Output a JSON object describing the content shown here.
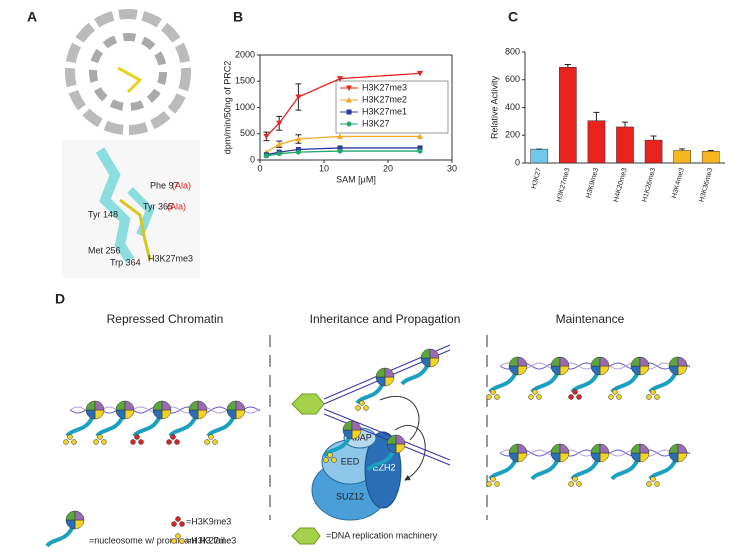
{
  "panel_labels": [
    "A",
    "B",
    "C",
    "D"
  ],
  "structure_labels": [
    "Phe 97",
    "(Ala)",
    "Tyr 365",
    "(Ala)",
    "Tyr 148",
    "Met 256",
    "Trp 364",
    "H3K27me3"
  ],
  "chart_data": [
    {
      "type": "line",
      "ylabel": "dpm/min/50ng of PRC2",
      "xlabel": "SAM [μM]",
      "x": [
        1,
        3,
        6,
        12.5,
        25
      ],
      "xlim": [
        0,
        30
      ],
      "xticks": [
        0,
        10,
        20,
        30
      ],
      "ylim": [
        0,
        2000
      ],
      "yticks": [
        0,
        500,
        1000,
        1500,
        2000
      ],
      "series": [
        {
          "name": "H3K27me3",
          "color": "#e8231e",
          "marker": "triangle-down",
          "values": [
            450,
            700,
            1200,
            1550,
            1650
          ],
          "errors": [
            80,
            130,
            250,
            null,
            null
          ]
        },
        {
          "name": "H3K27me2",
          "color": "#f5a623",
          "marker": "triangle-up",
          "values": [
            150,
            300,
            400,
            450,
            450
          ],
          "errors": [
            null,
            60,
            80,
            null,
            null
          ]
        },
        {
          "name": "H3K27me1",
          "color": "#2b3a9a",
          "marker": "square",
          "values": [
            100,
            150,
            200,
            230,
            230
          ],
          "errors": [
            null,
            null,
            null,
            null,
            null
          ]
        },
        {
          "name": "H3K27",
          "color": "#1fa86a",
          "marker": "circle",
          "values": [
            80,
            120,
            150,
            170,
            170
          ],
          "errors": [
            null,
            null,
            null,
            null,
            null
          ]
        }
      ]
    },
    {
      "type": "bar",
      "ylabel": "Relative Activity",
      "categories": [
        "H3K27",
        "H3K27me3",
        "H3K9me3",
        "H4K20me3",
        "H1K26me3",
        "H3K4me3",
        "H3K36me3"
      ],
      "values": [
        100,
        690,
        305,
        260,
        165,
        90,
        85
      ],
      "errors": [
        0,
        20,
        60,
        35,
        30,
        12,
        5
      ],
      "colors": [
        "#6fc8e8",
        "#e8231e",
        "#e8231e",
        "#e8231e",
        "#e8231e",
        "#f7b521",
        "#f7b521"
      ],
      "ylim": [
        0,
        800
      ],
      "yticks": [
        0,
        200,
        400,
        600,
        800
      ]
    }
  ],
  "diagram": {
    "headings": [
      "Repressed Chromatin",
      "Inheritance and Propagation",
      "Maintenance"
    ],
    "complex": [
      "RbAP",
      "EED",
      "EZH2",
      "SUZ12"
    ],
    "legend": [
      "=nucleosome w/ prominant H3 tail",
      "=H3K9me3",
      "=H3K27me3",
      "=DNA replication machinery"
    ]
  }
}
